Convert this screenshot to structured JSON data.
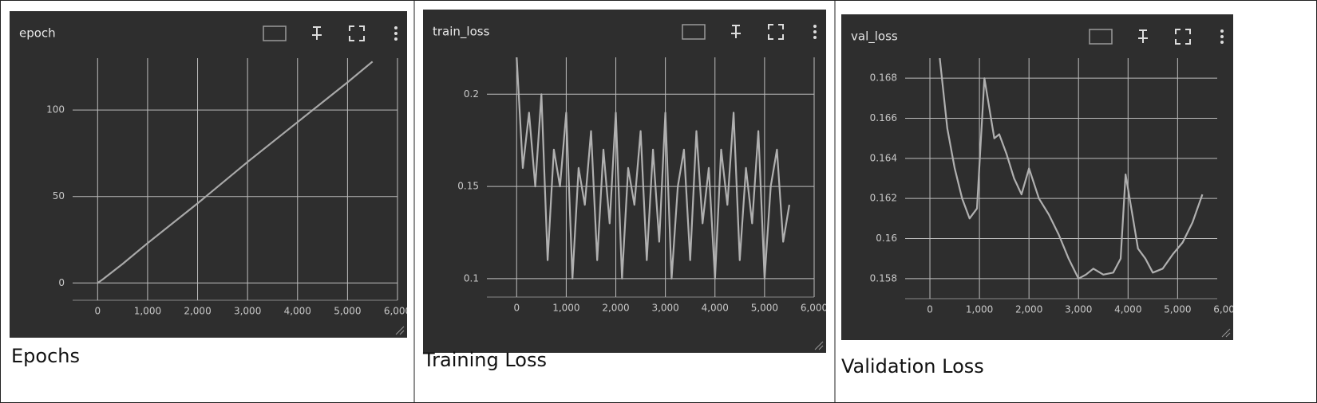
{
  "chart_data": [
    {
      "type": "line",
      "title": "epoch",
      "caption": "Epochs",
      "x": [
        0,
        100,
        500,
        1000,
        2000,
        3000,
        4000,
        5000,
        5500
      ],
      "values": [
        0,
        2,
        11,
        23,
        46,
        70,
        93,
        116,
        128
      ],
      "color": "#a9a9a9",
      "grid": true,
      "xlim": [
        -500,
        6000
      ],
      "ylim": [
        -10,
        130
      ],
      "xticks": [
        0,
        {
          "value": 1000,
          "label": "1,000"
        },
        {
          "value": 2000,
          "label": "2,000"
        },
        {
          "value": 3000,
          "label": "3,000"
        },
        {
          "value": 4000,
          "label": "4,000"
        },
        {
          "value": 5000,
          "label": "5,000"
        },
        {
          "value": 6000,
          "label": "6,000"
        }
      ],
      "yticks": [
        0,
        50,
        100
      ]
    },
    {
      "type": "line",
      "title": "train_loss",
      "caption": "Training Loss",
      "x": [
        0,
        125,
        250,
        375,
        500,
        625,
        750,
        875,
        1000,
        1125,
        1250,
        1375,
        1500,
        1625,
        1750,
        1875,
        2000,
        2125,
        2250,
        2375,
        2500,
        2625,
        2750,
        2875,
        3000,
        3125,
        3250,
        3375,
        3500,
        3625,
        3750,
        3875,
        4000,
        4125,
        4250,
        4375,
        4500,
        4625,
        4750,
        4875,
        5000,
        5125,
        5250,
        5375,
        5500
      ],
      "values": [
        0.22,
        0.16,
        0.19,
        0.15,
        0.2,
        0.11,
        0.17,
        0.15,
        0.19,
        0.1,
        0.16,
        0.14,
        0.18,
        0.11,
        0.17,
        0.13,
        0.19,
        0.1,
        0.16,
        0.14,
        0.18,
        0.11,
        0.17,
        0.12,
        0.19,
        0.1,
        0.15,
        0.17,
        0.11,
        0.18,
        0.13,
        0.16,
        0.1,
        0.17,
        0.14,
        0.19,
        0.11,
        0.16,
        0.13,
        0.18,
        0.1,
        0.15,
        0.17,
        0.12,
        0.14
      ],
      "color": "#b0b0b0",
      "grid": true,
      "xlim": [
        -600,
        6000
      ],
      "ylim": [
        0.09,
        0.22
      ],
      "xticks": [
        0,
        {
          "value": 1000,
          "label": "1,000"
        },
        {
          "value": 2000,
          "label": "2,000"
        },
        {
          "value": 3000,
          "label": "3,000"
        },
        {
          "value": 4000,
          "label": "4,000"
        },
        {
          "value": 5000,
          "label": "5,000"
        },
        {
          "value": 6000,
          "label": "6,000"
        }
      ],
      "yticks": [
        0.1,
        0.15,
        0.2
      ]
    },
    {
      "type": "line",
      "title": "val_loss",
      "caption": "Validation Loss",
      "x": [
        200,
        350,
        500,
        650,
        800,
        950,
        1100,
        1200,
        1300,
        1400,
        1550,
        1700,
        1850,
        2000,
        2200,
        2400,
        2600,
        2800,
        3000,
        3150,
        3300,
        3500,
        3700,
        3850,
        3950,
        4100,
        4200,
        4350,
        4500,
        4700,
        4900,
        5100,
        5300,
        5500
      ],
      "values": [
        0.169,
        0.1655,
        0.1635,
        0.162,
        0.161,
        0.1615,
        0.168,
        0.1665,
        0.165,
        0.1652,
        0.1642,
        0.163,
        0.1622,
        0.1635,
        0.162,
        0.1612,
        0.1602,
        0.159,
        0.158,
        0.1582,
        0.1585,
        0.1582,
        0.1583,
        0.159,
        0.1632,
        0.161,
        0.1595,
        0.159,
        0.1583,
        0.1585,
        0.1592,
        0.1598,
        0.1608,
        0.1622
      ],
      "color": "#b0b0b0",
      "grid": true,
      "xlim": [
        -500,
        5800
      ],
      "ylim": [
        0.157,
        0.169
      ],
      "xticks": [
        0,
        {
          "value": 1000,
          "label": "1,000"
        },
        {
          "value": 2000,
          "label": "2,000"
        },
        {
          "value": 3000,
          "label": "3,000"
        },
        {
          "value": 4000,
          "label": "4,000"
        },
        {
          "value": 5000,
          "label": "5,000"
        },
        {
          "value": 6000,
          "label": "6,000"
        }
      ],
      "yticks": [
        0.158,
        0.16,
        0.162,
        0.164,
        0.166,
        0.168
      ]
    }
  ]
}
